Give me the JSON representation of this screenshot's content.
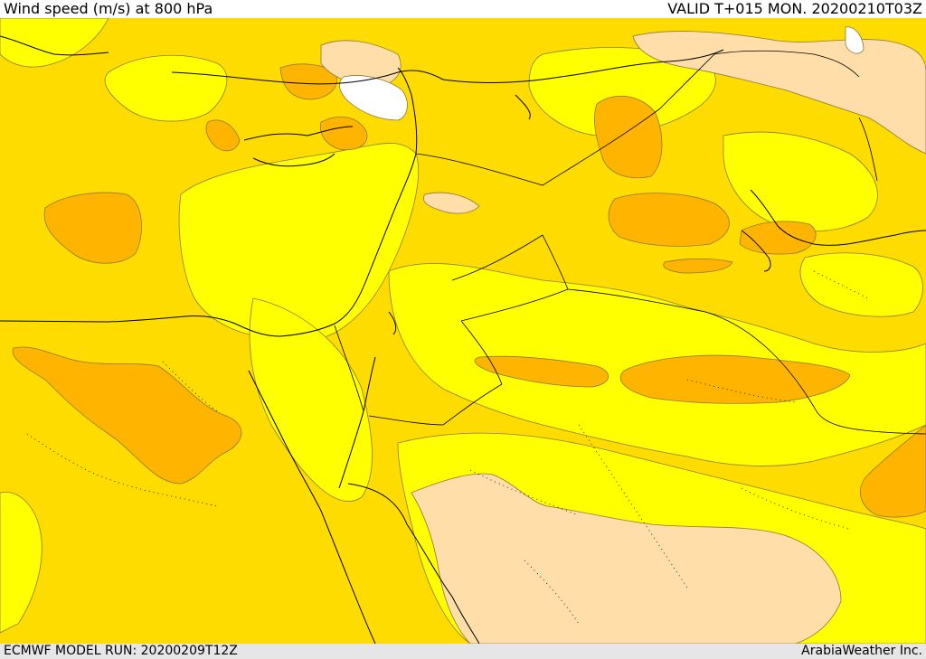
{
  "header": {
    "title": "Wind speed (m/s) at 800 hPa",
    "valid": "VALID T+015 MON. 20200210T03Z"
  },
  "footer": {
    "model_run": "ECMWF MODEL RUN: 20200209T12Z",
    "credit": "ArabiaWeather Inc."
  },
  "colors": {
    "calm": "#ffffff",
    "light": "#ffdeaa",
    "moderate_low": "#ffff00",
    "moderate": "#ffdc00",
    "strong": "#ffb400"
  }
}
